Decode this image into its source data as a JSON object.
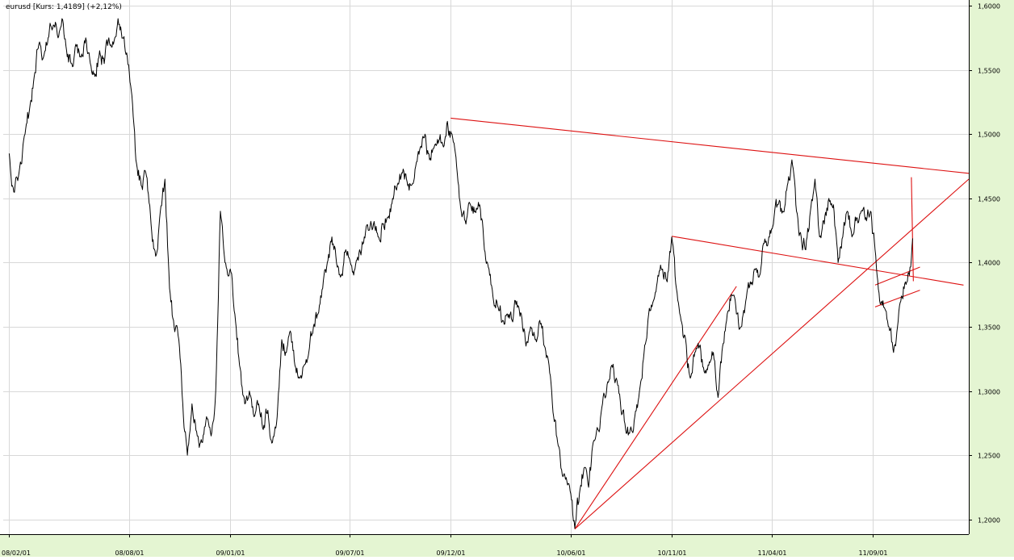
{
  "header": {
    "title": "eurusd [Kurs: 1,4189] (+2,12%)"
  },
  "colors": {
    "background": "#ffffff",
    "grid": "#d8d8d8",
    "axis_band": "#e4f5d2",
    "price_line": "#000000",
    "trendline": "#dd1111"
  },
  "chart_data": {
    "type": "line",
    "title": "eurusd [Kurs: 1,4189] (+2,12%)",
    "grid": true,
    "x_tick_labels": [
      "08/02/01",
      "08/08/01",
      "09/01/01",
      "09/07/01",
      "09/12/01",
      "10/06/01",
      "10/11/01",
      "11/04/01",
      "11/09/01"
    ],
    "x_tick_dates": [
      "2008-02-01",
      "2008-08-01",
      "2009-01-01",
      "2009-07-01",
      "2009-12-01",
      "2010-06-01",
      "2010-11-01",
      "2011-04-01",
      "2011-09-01"
    ],
    "y_tick_labels": [
      "1,6000",
      "1,5500",
      "1,5000",
      "1,4500",
      "1,4000",
      "1,3500",
      "1,3000",
      "1,2500",
      "1,2000"
    ],
    "y_ticks": [
      1.6,
      1.55,
      1.5,
      1.45,
      1.4,
      1.35,
      1.3,
      1.25,
      1.2
    ],
    "ylim": [
      1.1885,
      1.6045
    ],
    "xlim": [
      "2008-01-23",
      "2012-01-25"
    ],
    "series": [
      {
        "values": [
          [
            "2008-02-01",
            1.485
          ],
          [
            "2008-02-08",
            1.455
          ],
          [
            "2008-02-16",
            1.47
          ],
          [
            "2008-02-25",
            1.5
          ],
          [
            "2008-03-03",
            1.52
          ],
          [
            "2008-03-10",
            1.545
          ],
          [
            "2008-03-17",
            1.57
          ],
          [
            "2008-03-24",
            1.56
          ],
          [
            "2008-03-31",
            1.575
          ],
          [
            "2008-04-08",
            1.585
          ],
          [
            "2008-04-15",
            1.575
          ],
          [
            "2008-04-21",
            1.59
          ],
          [
            "2008-04-28",
            1.565
          ],
          [
            "2008-05-05",
            1.555
          ],
          [
            "2008-05-12",
            1.57
          ],
          [
            "2008-05-20",
            1.56
          ],
          [
            "2008-05-27",
            1.575
          ],
          [
            "2008-06-03",
            1.555
          ],
          [
            "2008-06-10",
            1.545
          ],
          [
            "2008-06-17",
            1.565
          ],
          [
            "2008-06-24",
            1.555
          ],
          [
            "2008-07-01",
            1.575
          ],
          [
            "2008-07-08",
            1.57
          ],
          [
            "2008-07-15",
            1.59
          ],
          [
            "2008-07-22",
            1.575
          ],
          [
            "2008-07-29",
            1.56
          ],
          [
            "2008-08-05",
            1.53
          ],
          [
            "2008-08-11",
            1.48
          ],
          [
            "2008-08-19",
            1.46
          ],
          [
            "2008-08-26",
            1.47
          ],
          [
            "2008-09-03",
            1.43
          ],
          [
            "2008-09-10",
            1.405
          ],
          [
            "2008-09-17",
            1.44
          ],
          [
            "2008-09-24",
            1.465
          ],
          [
            "2008-10-01",
            1.38
          ],
          [
            "2008-10-08",
            1.35
          ],
          [
            "2008-10-15",
            1.34
          ],
          [
            "2008-10-22",
            1.28
          ],
          [
            "2008-10-28",
            1.25
          ],
          [
            "2008-11-04",
            1.29
          ],
          [
            "2008-11-12",
            1.265
          ],
          [
            "2008-11-19",
            1.26
          ],
          [
            "2008-11-26",
            1.28
          ],
          [
            "2008-12-03",
            1.265
          ],
          [
            "2008-12-10",
            1.3
          ],
          [
            "2008-12-17",
            1.44
          ],
          [
            "2008-12-24",
            1.4
          ],
          [
            "2009-01-01",
            1.395
          ],
          [
            "2009-01-08",
            1.36
          ],
          [
            "2009-01-15",
            1.32
          ],
          [
            "2009-01-23",
            1.29
          ],
          [
            "2009-01-30",
            1.3
          ],
          [
            "2009-02-06",
            1.28
          ],
          [
            "2009-02-13",
            1.29
          ],
          [
            "2009-02-20",
            1.27
          ],
          [
            "2009-02-27",
            1.285
          ],
          [
            "2009-03-06",
            1.26
          ],
          [
            "2009-03-13",
            1.28
          ],
          [
            "2009-03-20",
            1.34
          ],
          [
            "2009-03-27",
            1.33
          ],
          [
            "2009-04-03",
            1.345
          ],
          [
            "2009-04-09",
            1.32
          ],
          [
            "2009-04-16",
            1.31
          ],
          [
            "2009-04-23",
            1.32
          ],
          [
            "2009-04-30",
            1.33
          ],
          [
            "2009-05-07",
            1.35
          ],
          [
            "2009-05-14",
            1.36
          ],
          [
            "2009-05-21",
            1.38
          ],
          [
            "2009-05-28",
            1.4
          ],
          [
            "2009-06-04",
            1.42
          ],
          [
            "2009-06-11",
            1.4
          ],
          [
            "2009-06-18",
            1.39
          ],
          [
            "2009-06-25",
            1.41
          ],
          [
            "2009-07-02",
            1.4
          ],
          [
            "2009-07-09",
            1.395
          ],
          [
            "2009-07-16",
            1.41
          ],
          [
            "2009-07-23",
            1.42
          ],
          [
            "2009-07-30",
            1.425
          ],
          [
            "2009-08-06",
            1.43
          ],
          [
            "2009-08-13",
            1.42
          ],
          [
            "2009-08-20",
            1.43
          ],
          [
            "2009-08-27",
            1.435
          ],
          [
            "2009-09-04",
            1.45
          ],
          [
            "2009-09-11",
            1.46
          ],
          [
            "2009-09-18",
            1.47
          ],
          [
            "2009-09-25",
            1.465
          ],
          [
            "2009-10-02",
            1.46
          ],
          [
            "2009-10-09",
            1.475
          ],
          [
            "2009-10-16",
            1.49
          ],
          [
            "2009-10-23",
            1.5
          ],
          [
            "2009-10-30",
            1.48
          ],
          [
            "2009-11-06",
            1.49
          ],
          [
            "2009-11-13",
            1.495
          ],
          [
            "2009-11-20",
            1.49
          ],
          [
            "2009-11-26",
            1.51
          ],
          [
            "2009-12-03",
            1.5
          ],
          [
            "2009-12-10",
            1.475
          ],
          [
            "2009-12-17",
            1.44
          ],
          [
            "2009-12-24",
            1.43
          ],
          [
            "2009-12-31",
            1.445
          ],
          [
            "2010-01-07",
            1.44
          ],
          [
            "2010-01-14",
            1.445
          ],
          [
            "2010-01-21",
            1.41
          ],
          [
            "2010-01-28",
            1.395
          ],
          [
            "2010-02-04",
            1.37
          ],
          [
            "2010-02-11",
            1.365
          ],
          [
            "2010-02-18",
            1.355
          ],
          [
            "2010-02-25",
            1.36
          ],
          [
            "2010-03-04",
            1.355
          ],
          [
            "2010-03-11",
            1.37
          ],
          [
            "2010-03-18",
            1.36
          ],
          [
            "2010-03-25",
            1.335
          ],
          [
            "2010-04-01",
            1.35
          ],
          [
            "2010-04-08",
            1.34
          ],
          [
            "2010-04-15",
            1.355
          ],
          [
            "2010-04-22",
            1.335
          ],
          [
            "2010-04-29",
            1.32
          ],
          [
            "2010-05-06",
            1.28
          ],
          [
            "2010-05-12",
            1.26
          ],
          [
            "2010-05-19",
            1.235
          ],
          [
            "2010-05-26",
            1.23
          ],
          [
            "2010-06-01",
            1.22
          ],
          [
            "2010-06-07",
            1.193
          ],
          [
            "2010-06-14",
            1.22
          ],
          [
            "2010-06-21",
            1.24
          ],
          [
            "2010-06-28",
            1.225
          ],
          [
            "2010-07-05",
            1.26
          ],
          [
            "2010-07-12",
            1.27
          ],
          [
            "2010-07-19",
            1.29
          ],
          [
            "2010-07-26",
            1.305
          ],
          [
            "2010-08-02",
            1.32
          ],
          [
            "2010-08-09",
            1.31
          ],
          [
            "2010-08-16",
            1.285
          ],
          [
            "2010-08-23",
            1.27
          ],
          [
            "2010-08-30",
            1.27
          ],
          [
            "2010-09-06",
            1.28
          ],
          [
            "2010-09-13",
            1.3
          ],
          [
            "2010-09-20",
            1.33
          ],
          [
            "2010-09-27",
            1.36
          ],
          [
            "2010-10-04",
            1.37
          ],
          [
            "2010-10-11",
            1.39
          ],
          [
            "2010-10-18",
            1.395
          ],
          [
            "2010-10-25",
            1.385
          ],
          [
            "2010-11-01",
            1.42
          ],
          [
            "2010-11-08",
            1.38
          ],
          [
            "2010-11-15",
            1.355
          ],
          [
            "2010-11-22",
            1.34
          ],
          [
            "2010-11-29",
            1.31
          ],
          [
            "2010-12-06",
            1.33
          ],
          [
            "2010-12-13",
            1.335
          ],
          [
            "2010-12-20",
            1.315
          ],
          [
            "2010-12-27",
            1.32
          ],
          [
            "2011-01-03",
            1.33
          ],
          [
            "2011-01-10",
            1.295
          ],
          [
            "2011-01-17",
            1.335
          ],
          [
            "2011-01-24",
            1.36
          ],
          [
            "2011-01-31",
            1.375
          ],
          [
            "2011-02-07",
            1.36
          ],
          [
            "2011-02-14",
            1.35
          ],
          [
            "2011-02-21",
            1.37
          ],
          [
            "2011-02-28",
            1.385
          ],
          [
            "2011-03-07",
            1.395
          ],
          [
            "2011-03-14",
            1.39
          ],
          [
            "2011-03-21",
            1.415
          ],
          [
            "2011-03-28",
            1.42
          ],
          [
            "2011-04-04",
            1.43
          ],
          [
            "2011-04-11",
            1.445
          ],
          [
            "2011-04-18",
            1.44
          ],
          [
            "2011-04-25",
            1.46
          ],
          [
            "2011-05-02",
            1.48
          ],
          [
            "2011-05-09",
            1.44
          ],
          [
            "2011-05-16",
            1.42
          ],
          [
            "2011-05-23",
            1.41
          ],
          [
            "2011-05-30",
            1.44
          ],
          [
            "2011-06-06",
            1.465
          ],
          [
            "2011-06-13",
            1.42
          ],
          [
            "2011-06-20",
            1.43
          ],
          [
            "2011-06-27",
            1.45
          ],
          [
            "2011-07-04",
            1.445
          ],
          [
            "2011-07-11",
            1.4
          ],
          [
            "2011-07-18",
            1.42
          ],
          [
            "2011-07-25",
            1.44
          ],
          [
            "2011-08-01",
            1.42
          ],
          [
            "2011-08-08",
            1.435
          ],
          [
            "2011-08-15",
            1.44
          ],
          [
            "2011-08-22",
            1.435
          ],
          [
            "2011-08-29",
            1.44
          ],
          [
            "2011-09-05",
            1.41
          ],
          [
            "2011-09-12",
            1.37
          ],
          [
            "2011-09-19",
            1.365
          ],
          [
            "2011-09-26",
            1.35
          ],
          [
            "2011-10-03",
            1.33
          ],
          [
            "2011-10-07",
            1.34
          ],
          [
            "2011-10-14",
            1.37
          ],
          [
            "2011-10-21",
            1.385
          ],
          [
            "2011-10-27",
            1.39
          ],
          [
            "2011-11-01",
            1.4189
          ]
        ]
      }
    ],
    "annotations": {
      "trendlines": [
        {
          "from": [
            "2009-12-01",
            1.5125
          ],
          "to": [
            "2012-01-25",
            1.4695
          ]
        },
        {
          "from": [
            "2010-11-01",
            1.4205
          ],
          "to": [
            "2012-01-17",
            1.3825
          ]
        },
        {
          "from": [
            "2010-06-07",
            1.1925
          ],
          "to": [
            "2012-01-25",
            1.465
          ]
        },
        {
          "from": [
            "2010-06-07",
            1.1925
          ],
          "to": [
            "2011-02-07",
            1.3815
          ]
        },
        {
          "from": [
            "2011-09-05",
            1.3825
          ],
          "to": [
            "2011-11-12",
            1.3965
          ]
        },
        {
          "from": [
            "2011-09-05",
            1.3655
          ],
          "to": [
            "2011-11-12",
            1.3785
          ]
        },
        {
          "from": [
            "2011-10-30",
            1.4665
          ],
          "to": [
            "2011-11-02",
            1.3855
          ]
        }
      ]
    }
  }
}
